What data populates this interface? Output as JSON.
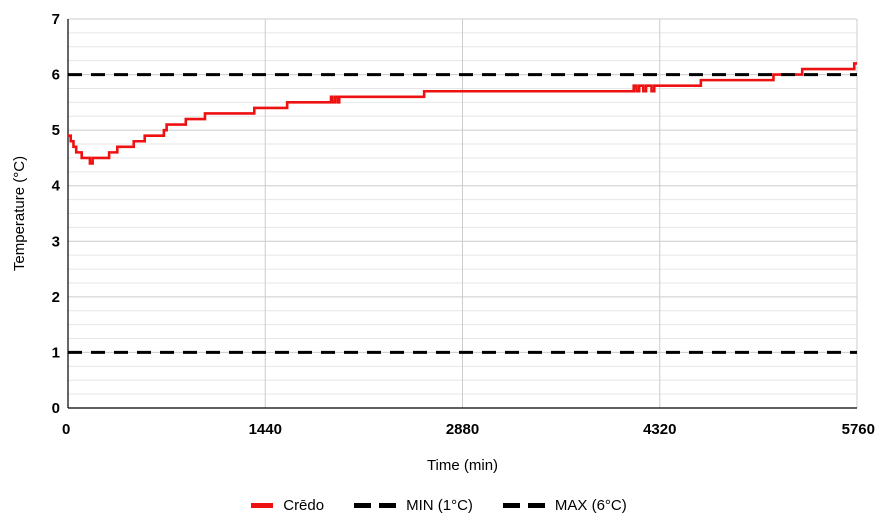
{
  "chart_data": {
    "type": "line",
    "xlabel": "Time (min)",
    "ylabel": "Temperature (°C)",
    "xlim": [
      0,
      5760
    ],
    "ylim": [
      0,
      7
    ],
    "x_ticks": [
      0,
      1440,
      2880,
      4320,
      5760
    ],
    "y_ticks": [
      0,
      1,
      2,
      3,
      4,
      5,
      6,
      7
    ],
    "grid": true,
    "legend_position": "bottom",
    "series": [
      {
        "name": "Crēdo",
        "color": "#ee1111",
        "style": "solid",
        "x": [
          0,
          20,
          40,
          60,
          80,
          100,
          120,
          150,
          160,
          180,
          200,
          220,
          240,
          260,
          280,
          300,
          320,
          340,
          360,
          380,
          420,
          460,
          480,
          500,
          520,
          540,
          560,
          580,
          600,
          660,
          700,
          720,
          740,
          760,
          800,
          860,
          880,
          920,
          1000,
          1060,
          1100,
          1140,
          1200,
          1300,
          1360,
          1400,
          1440,
          1540,
          1600,
          1700,
          1800,
          1900,
          1920,
          1930,
          1950,
          1970,
          1980,
          1990,
          2000,
          2100,
          2300,
          2500,
          2600,
          2800,
          3000,
          3200,
          3400,
          3600,
          3800,
          4000,
          4100,
          4130,
          4150,
          4170,
          4200,
          4220,
          4240,
          4260,
          4280,
          4300,
          4320,
          4400,
          4500,
          4600,
          4620,
          4700,
          4800,
          4900,
          5000,
          5100,
          5150,
          5200,
          5280,
          5300,
          5360,
          5400,
          5500,
          5600,
          5700,
          5720,
          5740,
          5760
        ],
        "values": [
          4.9,
          4.8,
          4.7,
          4.6,
          4.6,
          4.5,
          4.5,
          4.5,
          4.4,
          4.5,
          4.5,
          4.5,
          4.5,
          4.5,
          4.5,
          4.6,
          4.6,
          4.6,
          4.7,
          4.7,
          4.7,
          4.7,
          4.8,
          4.8,
          4.8,
          4.8,
          4.9,
          4.9,
          4.9,
          4.9,
          5.0,
          5.1,
          5.1,
          5.1,
          5.1,
          5.2,
          5.2,
          5.2,
          5.3,
          5.3,
          5.3,
          5.3,
          5.3,
          5.3,
          5.4,
          5.4,
          5.4,
          5.4,
          5.5,
          5.5,
          5.5,
          5.5,
          5.6,
          5.5,
          5.6,
          5.5,
          5.6,
          5.6,
          5.6,
          5.6,
          5.6,
          5.6,
          5.7,
          5.7,
          5.7,
          5.7,
          5.7,
          5.7,
          5.7,
          5.7,
          5.7,
          5.8,
          5.7,
          5.8,
          5.7,
          5.8,
          5.8,
          5.7,
          5.8,
          5.8,
          5.8,
          5.8,
          5.8,
          5.8,
          5.9,
          5.9,
          5.9,
          5.9,
          5.9,
          5.9,
          6.0,
          6.0,
          6.0,
          6.0,
          6.1,
          6.1,
          6.1,
          6.1,
          6.1,
          6.1,
          6.2,
          6.2
        ]
      },
      {
        "name": "MIN (1°C)",
        "color": "#000000",
        "style": "dashed",
        "x": [
          0,
          5760
        ],
        "values": [
          1,
          1
        ]
      },
      {
        "name": "MAX (6°C)",
        "color": "#000000",
        "style": "dashed",
        "x": [
          0,
          5760
        ],
        "values": [
          6,
          6
        ]
      }
    ]
  }
}
